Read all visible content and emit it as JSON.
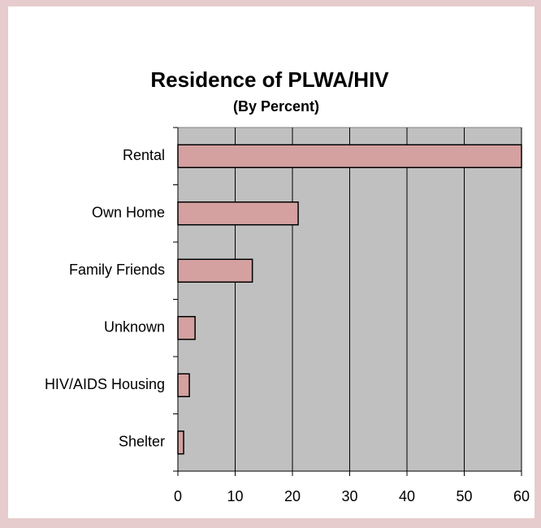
{
  "chart_data": {
    "type": "bar",
    "orientation": "horizontal",
    "title": "Residence of PLWA/HIV",
    "subtitle": "(By Percent)",
    "categories": [
      "Rental",
      "Own Home",
      "Family Friends",
      "Unknown",
      "HIV/AIDS Housing",
      "Shelter"
    ],
    "values": [
      60,
      21,
      13,
      3,
      2,
      1
    ],
    "color": "#d4a0a0",
    "xlim": [
      0,
      60
    ],
    "xticks": [
      0,
      10,
      20,
      30,
      40,
      50,
      60
    ],
    "grid": true
  }
}
